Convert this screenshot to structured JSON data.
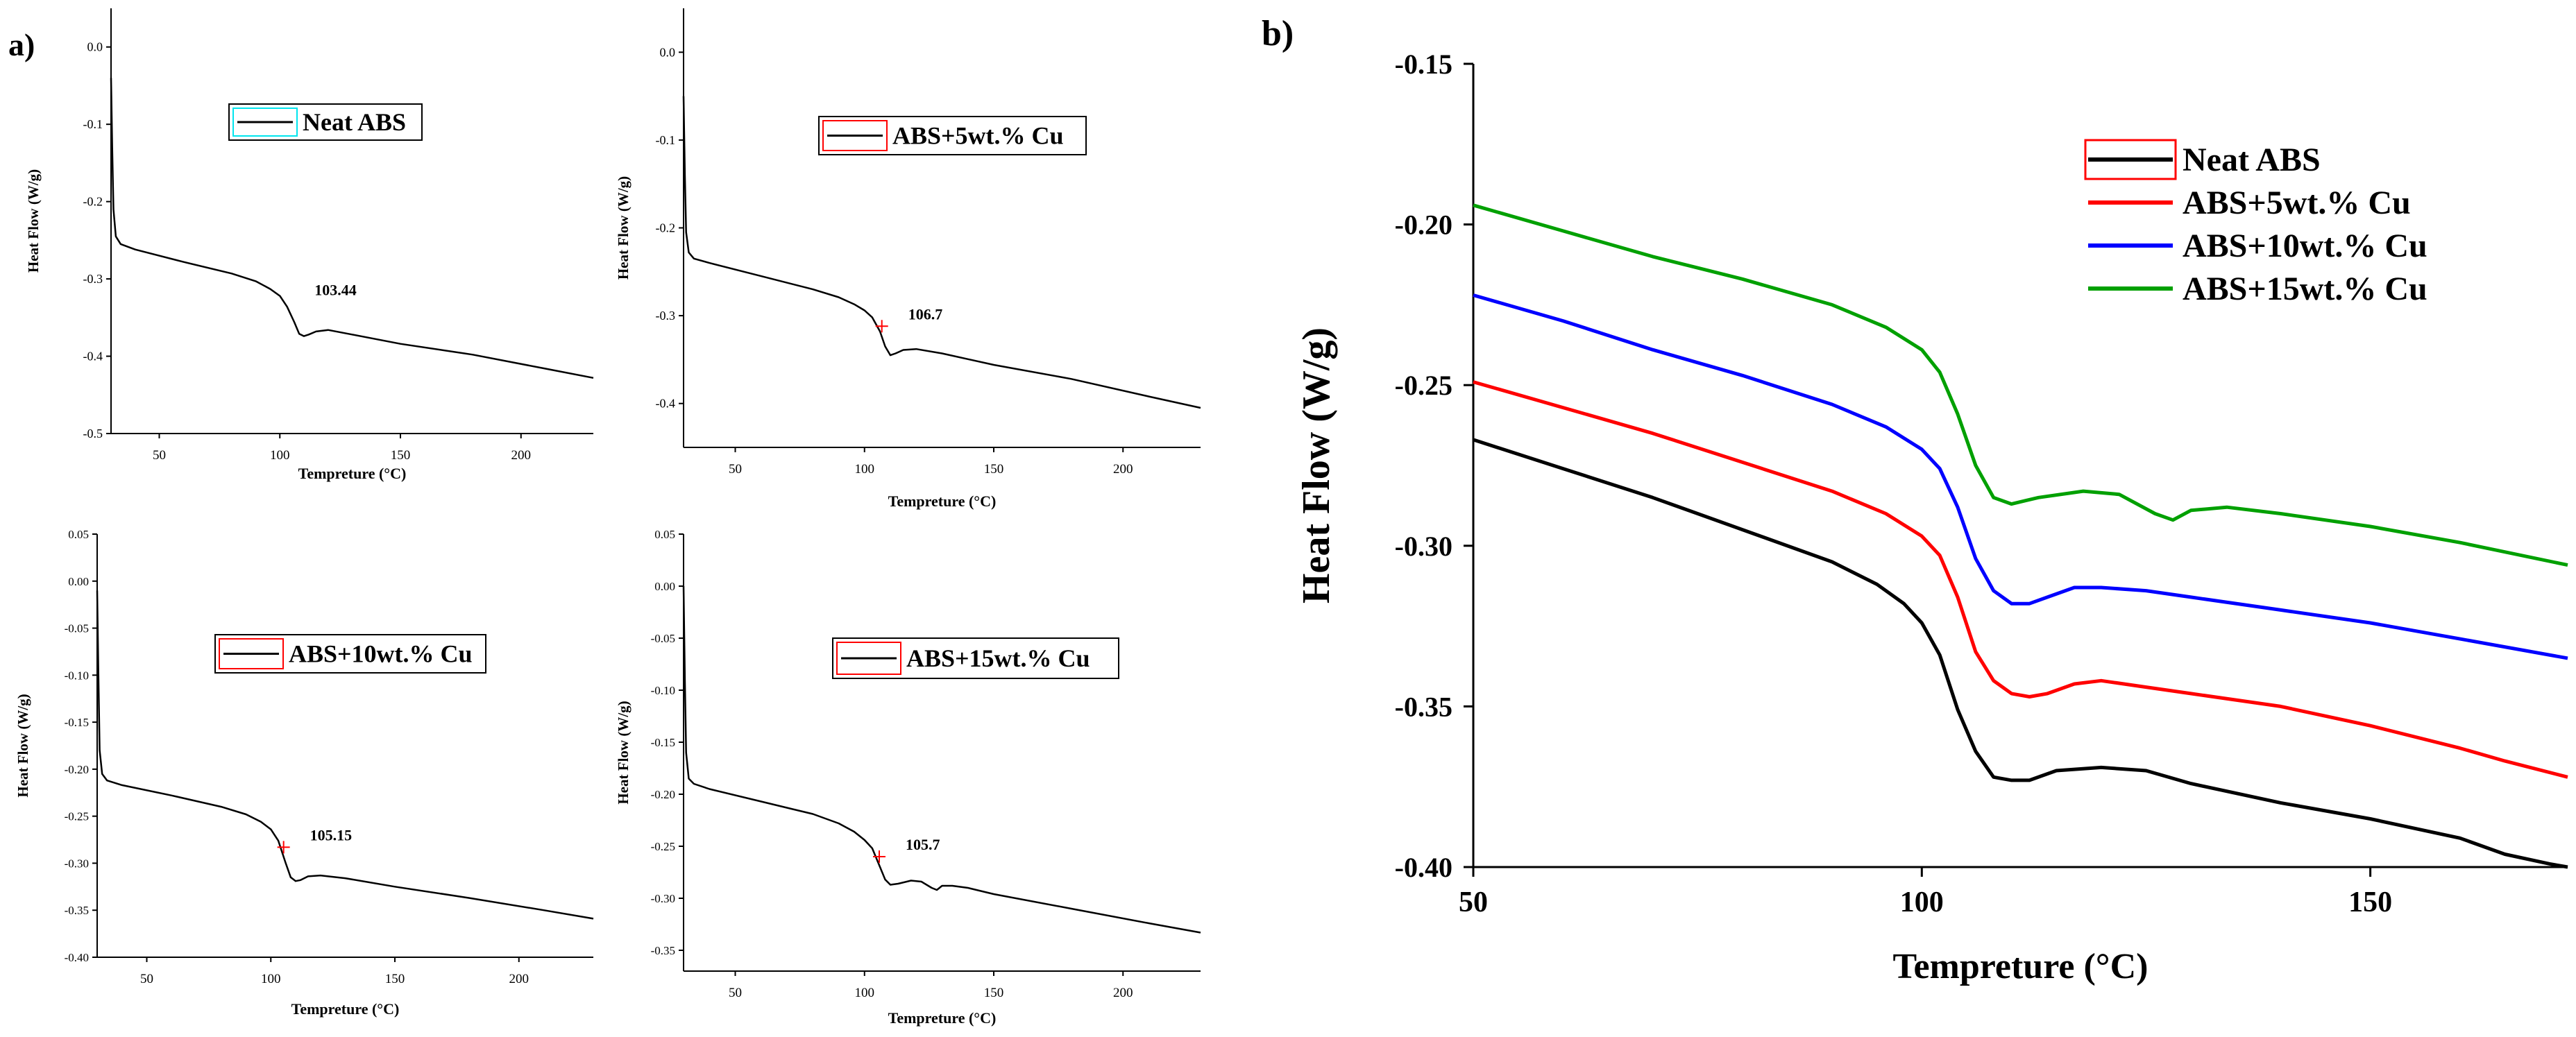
{
  "panel_labels": {
    "a": "a)",
    "b": "b)"
  },
  "colors": {
    "black": "#000000",
    "red": "#ff0000",
    "blue": "#0000ff",
    "green": "#00a000",
    "cyan": "#00e5ee",
    "marker": "#ff0000"
  },
  "chart_data": [
    {
      "id": "a1",
      "type": "line",
      "title": "",
      "xlabel": "Tempreture (°C)",
      "ylabel": "Heat Flow (W/g)",
      "xlim": [
        30,
        230
      ],
      "ylim": [
        -0.5,
        0.05
      ],
      "xticks": [
        50,
        100,
        150,
        200
      ],
      "xtick_labels": [
        "50",
        "100",
        "150",
        "200"
      ],
      "yticks": [
        0.0,
        -0.1,
        -0.2,
        -0.3,
        -0.4,
        -0.5
      ],
      "ytick_labels": [
        "0.0",
        "-0.1",
        "-0.2",
        "-0.3",
        "-0.4",
        "-0.5"
      ],
      "legend": {
        "label": "Neat ABS",
        "placement": "top-center",
        "swatch": "cyan"
      },
      "annotation": {
        "text": "103.44",
        "x": 103.44,
        "y": -0.33,
        "marker": false
      },
      "series": [
        {
          "name": "Neat ABS",
          "color": "black",
          "x": [
            30,
            30.5,
            31,
            32,
            34,
            40,
            60,
            80,
            90,
            96,
            100,
            103,
            106,
            108,
            110,
            112,
            115,
            120,
            130,
            150,
            180,
            210,
            230
          ],
          "y": [
            -0.04,
            -0.13,
            -0.21,
            -0.245,
            -0.255,
            -0.262,
            -0.278,
            -0.293,
            -0.303,
            -0.313,
            -0.322,
            -0.336,
            -0.356,
            -0.371,
            -0.374,
            -0.372,
            -0.368,
            -0.366,
            -0.372,
            -0.384,
            -0.398,
            -0.416,
            -0.428
          ]
        }
      ]
    },
    {
      "id": "a2",
      "type": "line",
      "title": "",
      "xlabel": "Tempreture (°C)",
      "ylabel": "Heat Flow (W/g)",
      "xlim": [
        30,
        230
      ],
      "ylim": [
        -0.45,
        0.05
      ],
      "xticks": [
        50,
        100,
        150,
        200
      ],
      "xtick_labels": [
        "50",
        "100",
        "150",
        "200"
      ],
      "yticks": [
        0.0,
        -0.1,
        -0.2,
        -0.3,
        -0.4
      ],
      "ytick_labels": [
        "0.0",
        "-0.1",
        "-0.2",
        "-0.3",
        "-0.4"
      ],
      "legend": {
        "label": "ABS+5wt.% Cu",
        "placement": "top-right",
        "swatch": "red"
      },
      "annotation": {
        "text": "106.7",
        "x": 106.7,
        "y": -0.312,
        "marker": true
      },
      "series": [
        {
          "name": "ABS+5wt.% Cu",
          "color": "black",
          "x": [
            30,
            30.5,
            31,
            32,
            34,
            40,
            60,
            80,
            90,
            96,
            100,
            103,
            106,
            108,
            110,
            112,
            115,
            120,
            130,
            150,
            180,
            210,
            230
          ],
          "y": [
            -0.05,
            -0.14,
            -0.205,
            -0.228,
            -0.235,
            -0.24,
            -0.255,
            -0.27,
            -0.279,
            -0.287,
            -0.294,
            -0.302,
            -0.318,
            -0.335,
            -0.345,
            -0.343,
            -0.339,
            -0.338,
            -0.343,
            -0.356,
            -0.372,
            -0.392,
            -0.405
          ]
        }
      ]
    },
    {
      "id": "a3",
      "type": "line",
      "title": "",
      "xlabel": "Tempreture (°C)",
      "ylabel": "Heat Flow (W/g)",
      "xlim": [
        30,
        230
      ],
      "ylim": [
        -0.4,
        0.05
      ],
      "xticks": [
        50,
        100,
        150,
        200
      ],
      "xtick_labels": [
        "50",
        "100",
        "150",
        "200"
      ],
      "yticks": [
        0.05,
        0.0,
        -0.05,
        -0.1,
        -0.15,
        -0.2,
        -0.25,
        -0.3,
        -0.35,
        -0.4
      ],
      "ytick_labels": [
        "0.05",
        "0.00",
        "-0.05",
        "-0.10",
        "-0.15",
        "-0.20",
        "-0.25",
        "-0.30",
        "-0.35",
        "-0.40"
      ],
      "legend": {
        "label": "ABS+10wt.% Cu",
        "placement": "top-right",
        "swatch": "red"
      },
      "annotation": {
        "text": "105.15",
        "x": 105.15,
        "y": -0.283,
        "marker": true
      },
      "series": [
        {
          "name": "ABS+10wt.% Cu",
          "color": "black",
          "x": [
            30,
            30.5,
            31,
            32,
            34,
            40,
            60,
            80,
            90,
            96,
            100,
            103,
            106,
            108,
            110,
            112,
            115,
            120,
            130,
            150,
            180,
            210,
            230
          ],
          "y": [
            -0.01,
            -0.1,
            -0.18,
            -0.205,
            -0.212,
            -0.217,
            -0.228,
            -0.24,
            -0.248,
            -0.256,
            -0.264,
            -0.276,
            -0.3,
            -0.315,
            -0.319,
            -0.318,
            -0.314,
            -0.313,
            -0.316,
            -0.325,
            -0.337,
            -0.35,
            -0.359
          ]
        }
      ]
    },
    {
      "id": "a4",
      "type": "line",
      "title": "",
      "xlabel": "Tempreture (°C)",
      "ylabel": "Heat Flow (W/g)",
      "xlim": [
        30,
        230
      ],
      "ylim": [
        -0.37,
        0.05
      ],
      "xticks": [
        50,
        100,
        150,
        200
      ],
      "xtick_labels": [
        "50",
        "100",
        "150",
        "200"
      ],
      "yticks": [
        0.05,
        0.0,
        -0.05,
        -0.1,
        -0.15,
        -0.2,
        -0.25,
        -0.3,
        -0.35
      ],
      "ytick_labels": [
        "0.05",
        "0.00",
        "-0.05",
        "-0.10",
        "-0.15",
        "-0.20",
        "-0.25",
        "-0.30",
        "-0.35"
      ],
      "legend": {
        "label": "ABS+15wt.% Cu",
        "placement": "top-right",
        "swatch": "red"
      },
      "annotation": {
        "text": "105.7",
        "x": 105.7,
        "y": -0.26,
        "marker": true
      },
      "series": [
        {
          "name": "ABS+15wt.% Cu",
          "color": "black",
          "x": [
            30,
            30.5,
            31,
            32,
            34,
            40,
            60,
            80,
            90,
            96,
            100,
            103,
            106,
            108,
            110,
            113,
            118,
            122,
            126,
            128,
            130,
            134,
            140,
            150,
            180,
            210,
            230
          ],
          "y": [
            0.0,
            -0.09,
            -0.16,
            -0.185,
            -0.19,
            -0.195,
            -0.207,
            -0.219,
            -0.228,
            -0.236,
            -0.244,
            -0.252,
            -0.27,
            -0.282,
            -0.287,
            -0.286,
            -0.283,
            -0.284,
            -0.29,
            -0.292,
            -0.288,
            -0.288,
            -0.29,
            -0.296,
            -0.31,
            -0.324,
            -0.333
          ]
        }
      ]
    },
    {
      "id": "b",
      "type": "line",
      "title": "",
      "xlabel": "Tempreture (°C)",
      "ylabel": "Heat Flow (W/g)",
      "xlim": [
        50,
        172
      ],
      "ylim": [
        -0.4,
        -0.15
      ],
      "xticks": [
        50,
        100,
        150
      ],
      "xtick_labels": [
        "50",
        "100",
        "150"
      ],
      "yticks": [
        -0.15,
        -0.2,
        -0.25,
        -0.3,
        -0.35,
        -0.4
      ],
      "ytick_labels": [
        "-0.15",
        "-0.20",
        "-0.25",
        "-0.30",
        "-0.35",
        "-0.40"
      ],
      "legend": {
        "placement": "top-right"
      },
      "series": [
        {
          "name": "Neat ABS",
          "color": "black",
          "x": [
            50,
            60,
            70,
            80,
            90,
            95,
            98,
            100,
            102,
            104,
            106,
            108,
            110,
            112,
            115,
            120,
            125,
            130,
            140,
            150,
            160,
            165,
            170,
            172
          ],
          "y": [
            -0.267,
            -0.276,
            -0.285,
            -0.295,
            -0.305,
            -0.312,
            -0.318,
            -0.324,
            -0.334,
            -0.351,
            -0.364,
            -0.372,
            -0.373,
            -0.373,
            -0.37,
            -0.369,
            -0.37,
            -0.374,
            -0.38,
            -0.385,
            -0.391,
            -0.396,
            -0.399,
            -0.4
          ]
        },
        {
          "name": "ABS+5wt.% Cu",
          "color": "red",
          "x": [
            50,
            60,
            70,
            80,
            90,
            96,
            100,
            102,
            104,
            106,
            108,
            110,
            112,
            114,
            117,
            120,
            125,
            130,
            140,
            150,
            160,
            165,
            172
          ],
          "y": [
            -0.249,
            -0.257,
            -0.265,
            -0.274,
            -0.283,
            -0.29,
            -0.297,
            -0.303,
            -0.316,
            -0.333,
            -0.342,
            -0.346,
            -0.347,
            -0.346,
            -0.343,
            -0.342,
            -0.344,
            -0.346,
            -0.35,
            -0.356,
            -0.363,
            -0.367,
            -0.372
          ]
        },
        {
          "name": "ABS+10wt.% Cu",
          "color": "blue",
          "x": [
            50,
            60,
            70,
            80,
            90,
            96,
            100,
            102,
            104,
            106,
            108,
            110,
            112,
            114,
            117,
            120,
            125,
            130,
            140,
            150,
            160,
            172
          ],
          "y": [
            -0.222,
            -0.23,
            -0.239,
            -0.247,
            -0.256,
            -0.263,
            -0.27,
            -0.276,
            -0.288,
            -0.304,
            -0.314,
            -0.318,
            -0.318,
            -0.316,
            -0.313,
            -0.313,
            -0.314,
            -0.316,
            -0.32,
            -0.324,
            -0.329,
            -0.335
          ]
        },
        {
          "name": "ABS+15wt.% Cu",
          "color": "green",
          "x": [
            50,
            60,
            70,
            80,
            90,
            96,
            100,
            102,
            104,
            106,
            108,
            110,
            113,
            118,
            122,
            126,
            128,
            130,
            134,
            140,
            150,
            160,
            172
          ],
          "y": [
            -0.194,
            -0.202,
            -0.21,
            -0.217,
            -0.225,
            -0.232,
            -0.239,
            -0.246,
            -0.259,
            -0.275,
            -0.285,
            -0.287,
            -0.285,
            -0.283,
            -0.284,
            -0.29,
            -0.292,
            -0.289,
            -0.288,
            -0.29,
            -0.294,
            -0.299,
            -0.306
          ]
        }
      ]
    }
  ]
}
